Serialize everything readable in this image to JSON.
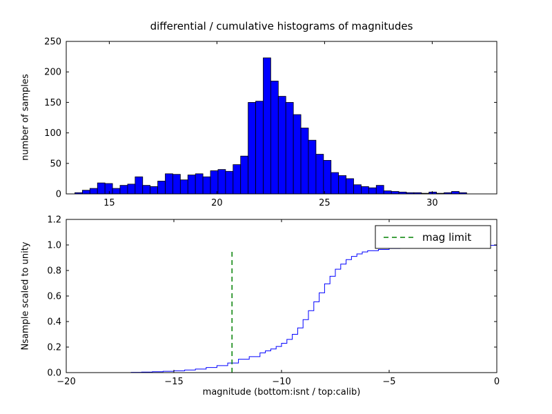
{
  "figure": {
    "title": "differential / cumulative histograms of magnitudes",
    "xlabel": "magnitude (bottom:isnt / top:calib)",
    "background": "#ffffff"
  },
  "chart_data": [
    {
      "type": "bar",
      "name": "differential-histogram",
      "ylabel": "number of samples",
      "bar_color": "#0000ff",
      "edge_color": "#000000",
      "xlim": [
        13,
        33
      ],
      "ylim": [
        0,
        250
      ],
      "xticks": [
        15,
        20,
        25,
        30
      ],
      "xtick_labels": [
        "15",
        "20",
        "25",
        "30"
      ],
      "yticks": [
        0,
        50,
        100,
        150,
        200,
        250
      ],
      "ytick_labels": [
        "0",
        "50",
        "100",
        "150",
        "200",
        "250"
      ],
      "bin_start": 13.4,
      "bin_width": 0.35,
      "counts": [
        2,
        6,
        9,
        18,
        17,
        9,
        14,
        16,
        28,
        14,
        12,
        21,
        33,
        32,
        23,
        31,
        33,
        28,
        38,
        40,
        37,
        48,
        62,
        150,
        152,
        223,
        185,
        160,
        150,
        130,
        108,
        88,
        65,
        55,
        35,
        30,
        25,
        15,
        12,
        10,
        14,
        5,
        4,
        3,
        2,
        2,
        1,
        3,
        1,
        2,
        4,
        2
      ]
    },
    {
      "type": "line",
      "name": "cumulative-histogram",
      "style": "step",
      "ylabel": "Nsample scaled to unity",
      "line_color": "#0000ff",
      "xlim": [
        -20,
        0
      ],
      "ylim": [
        0,
        1.2
      ],
      "xticks": [
        -20,
        -15,
        -10,
        -5,
        0
      ],
      "xtick_labels": [
        "−20",
        "−15",
        "−10",
        "−5",
        "0"
      ],
      "yticks": [
        0,
        0.2,
        0.4,
        0.6,
        0.8,
        1.0,
        1.2
      ],
      "ytick_labels": [
        "0.0",
        "0.2",
        "0.4",
        "0.6",
        "0.8",
        "1.0",
        "1.2"
      ],
      "x": [
        -17.0,
        -16.5,
        -16.0,
        -15.5,
        -15.0,
        -14.5,
        -14.0,
        -13.5,
        -13.0,
        -12.5,
        -12.0,
        -11.5,
        -11.0,
        -10.75,
        -10.5,
        -10.25,
        -10.0,
        -9.75,
        -9.5,
        -9.25,
        -9.0,
        -8.75,
        -8.5,
        -8.25,
        -8.0,
        -7.75,
        -7.5,
        -7.25,
        -7.0,
        -6.75,
        -6.5,
        -6.25,
        -6.0,
        -5.5,
        -5.0,
        -4.5,
        -4.0,
        -3.5,
        -3.0,
        -2.5,
        -2.0,
        -1.5,
        -1.0,
        -0.5,
        0.0
      ],
      "y": [
        0.002,
        0.004,
        0.007,
        0.01,
        0.014,
        0.02,
        0.028,
        0.04,
        0.055,
        0.075,
        0.105,
        0.125,
        0.155,
        0.17,
        0.185,
        0.205,
        0.23,
        0.26,
        0.3,
        0.35,
        0.415,
        0.485,
        0.555,
        0.625,
        0.695,
        0.755,
        0.81,
        0.85,
        0.885,
        0.91,
        0.93,
        0.945,
        0.955,
        0.965,
        0.972,
        0.976,
        0.98,
        0.983,
        0.986,
        0.989,
        0.991,
        0.993,
        0.995,
        0.997,
        1.0
      ],
      "mag_limit": {
        "x": -12.3,
        "y_top": 0.95,
        "color": "#008000",
        "linestyle": "dashed",
        "label": "mag limit"
      },
      "legend": {
        "label": "mag limit",
        "position": "upper right"
      }
    }
  ]
}
